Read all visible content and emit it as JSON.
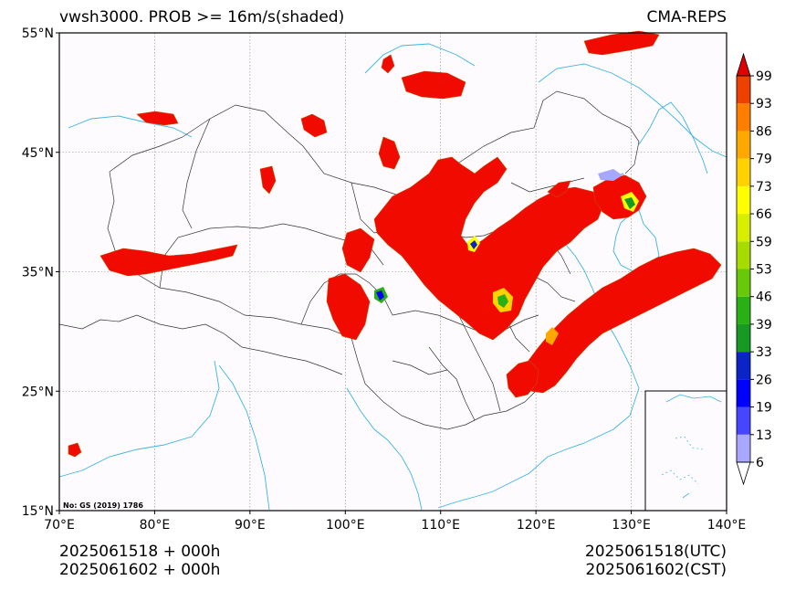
{
  "header": {
    "title_left": "vwsh3000. PROB >= 16m/s(shaded)",
    "title_right": "CMA-REPS"
  },
  "map": {
    "lon_range": [
      70,
      140
    ],
    "lat_range": [
      15,
      55
    ],
    "lon_ticks": [
      "70°E",
      "80°E",
      "90°E",
      "100°E",
      "110°E",
      "120°E",
      "130°E",
      "140°E"
    ],
    "lat_ticks": [
      "15°N",
      "25°N",
      "35°N",
      "45°N",
      "55°N"
    ],
    "gridlines": true,
    "background_color": "#fdfbfd",
    "shade_color": "#f00a00",
    "coast_color": "#3cb4e6",
    "border_color": "#333333",
    "credit": "No: GS (2019) 1786",
    "inset": "South China Sea islands (lower-right)"
  },
  "colorbar": {
    "levels": [
      "6",
      "13",
      "19",
      "26",
      "33",
      "39",
      "46",
      "53",
      "59",
      "66",
      "73",
      "79",
      "86",
      "93",
      "99"
    ],
    "colors": [
      "#a7a7ff",
      "#4646ff",
      "#0000ff",
      "#0a24c8",
      "#169a24",
      "#28b014",
      "#6ac80a",
      "#a6dc00",
      "#d8ee00",
      "#ffff00",
      "#ffd200",
      "#ffa800",
      "#ff7e00",
      "#f04000",
      "#e00000"
    ],
    "extend": "both"
  },
  "footer": {
    "left_line1": "2025061518  +  000h",
    "left_line2": "2025061602  +  000h",
    "right_line1": "2025061518(UTC)",
    "right_line2": "2025061602(CST)"
  }
}
